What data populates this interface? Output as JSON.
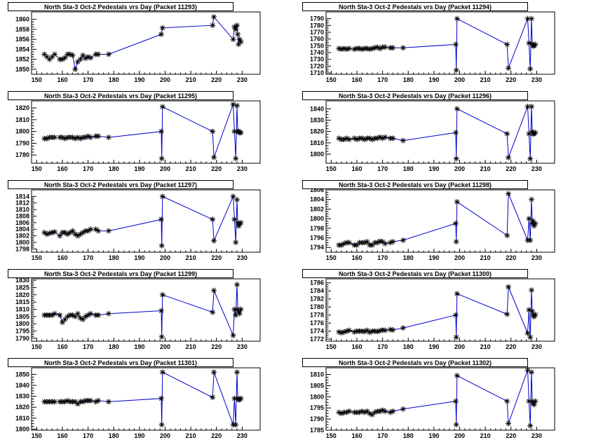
{
  "chart_data": [
    {
      "type": "line",
      "title": "North Sta-3 Oct-2 Pedestals vrs Day (Packet 11293)",
      "xlim": [
        148,
        237
      ],
      "xticks": [
        150,
        160,
        170,
        180,
        190,
        200,
        210,
        220,
        230
      ],
      "ylim": [
        1849,
        1861.5
      ],
      "yticks": [
        1850,
        1852,
        1854,
        1856,
        1858,
        1860
      ],
      "x": [
        153,
        154,
        155,
        156,
        157,
        159,
        160,
        161,
        162,
        163,
        164,
        165,
        166,
        167,
        168,
        169,
        170,
        171,
        173,
        174,
        178,
        198.5,
        199,
        218.5,
        219,
        226.5,
        227,
        227.5,
        228,
        228.3,
        228.6,
        229,
        229.5
      ],
      "y": [
        1853,
        1852.5,
        1852,
        1852.5,
        1853,
        1852,
        1852,
        1852.3,
        1853,
        1853,
        1852.8,
        1850,
        1851.5,
        1852,
        1852.8,
        1852.2,
        1852.5,
        1852.3,
        1853,
        1853,
        1853,
        1857,
        1858.3,
        1858.8,
        1860.5,
        1856,
        1858.5,
        1858,
        1858.8,
        1857,
        1855,
        1856,
        1855.5
      ],
      "color": "#0000cc"
    },
    {
      "type": "line",
      "title": "North Sta-3 Oct-2 Pedestals vrs Day (Packet 11294)",
      "xlim": [
        148,
        237
      ],
      "xticks": [
        150,
        160,
        170,
        180,
        190,
        200,
        210,
        220,
        230
      ],
      "ylim": [
        1708,
        1800
      ],
      "yticks": [
        1710,
        1720,
        1730,
        1740,
        1750,
        1760,
        1770,
        1780,
        1790
      ],
      "x": [
        153,
        154,
        155,
        156,
        157,
        159,
        160,
        161,
        162,
        163,
        164,
        165,
        166,
        167,
        168,
        169,
        170,
        171,
        173,
        174,
        178,
        198.5,
        198.7,
        199,
        218.5,
        219,
        226.5,
        227,
        227.5,
        228,
        228.3,
        228.6,
        229,
        229.5
      ],
      "y": [
        1746,
        1745,
        1746,
        1745,
        1746,
        1745,
        1746,
        1746,
        1745,
        1746,
        1746,
        1745,
        1746,
        1747,
        1748,
        1746,
        1748,
        1748,
        1747,
        1747,
        1747,
        1752,
        1714,
        1790,
        1752,
        1717,
        1790,
        1754,
        1716,
        1790,
        1753,
        1750,
        1750,
        1752
      ],
      "color": "#0000cc"
    },
    {
      "type": "line",
      "title": "North Sta-3 Oct-2 Pedestals vrs Day (Packet 11295)",
      "xlim": [
        148,
        237
      ],
      "xticks": [
        150,
        160,
        170,
        180,
        190,
        200,
        210,
        220,
        230
      ],
      "ylim": [
        1773,
        1826
      ],
      "yticks": [
        1780,
        1790,
        1800,
        1810,
        1820
      ],
      "x": [
        153,
        154,
        155,
        156,
        157,
        159,
        160,
        161,
        162,
        163,
        164,
        165,
        166,
        167,
        168,
        169,
        170,
        171,
        173,
        174,
        178,
        198.5,
        198.7,
        199,
        218.5,
        219,
        226.5,
        227,
        227.5,
        228,
        228.3,
        228.6,
        229,
        229.5
      ],
      "y": [
        1794,
        1794,
        1795,
        1795,
        1795,
        1795,
        1795,
        1794,
        1795,
        1795,
        1795,
        1794,
        1795,
        1794,
        1795,
        1795,
        1796,
        1795,
        1796,
        1796,
        1795,
        1800,
        1777,
        1821,
        1800,
        1778,
        1823,
        1800,
        1777,
        1822,
        1800,
        1800,
        1799,
        1799
      ],
      "color": "#0000cc"
    },
    {
      "type": "line",
      "title": "North Sta-3 Oct-2 Pedestals vrs Day (Packet 11296)",
      "xlim": [
        148,
        237
      ],
      "xticks": [
        150,
        160,
        170,
        180,
        190,
        200,
        210,
        220,
        230
      ],
      "ylim": [
        1792,
        1847
      ],
      "yticks": [
        1800,
        1810,
        1820,
        1830,
        1840
      ],
      "x": [
        153,
        154,
        155,
        156,
        157,
        159,
        160,
        161,
        162,
        163,
        164,
        165,
        166,
        167,
        168,
        169,
        170,
        171,
        173,
        174,
        178,
        198.5,
        198.7,
        199,
        218.5,
        219,
        226.5,
        227,
        227.5,
        228,
        228.3,
        228.6,
        229,
        229.5
      ],
      "y": [
        1814,
        1813,
        1813,
        1814,
        1813,
        1814,
        1813,
        1814,
        1814,
        1813,
        1814,
        1814,
        1813,
        1814,
        1814,
        1815,
        1814,
        1815,
        1814,
        1814,
        1812,
        1819,
        1796,
        1840,
        1818,
        1797,
        1842,
        1818,
        1796,
        1842,
        1820,
        1818,
        1818,
        1819
      ],
      "color": "#0000cc"
    },
    {
      "type": "line",
      "title": "North Sta-3 Oct-2 Pedestals vrs Day (Packet 11297)",
      "xlim": [
        148,
        237
      ],
      "xticks": [
        150,
        160,
        170,
        180,
        190,
        200,
        210,
        220,
        230
      ],
      "ylim": [
        1797,
        1816
      ],
      "yticks": [
        1798,
        1800,
        1802,
        1804,
        1806,
        1808,
        1810,
        1812,
        1814
      ],
      "x": [
        153,
        154,
        155,
        156,
        157,
        159,
        160,
        161,
        162,
        163,
        164,
        165,
        166,
        167,
        168,
        169,
        170,
        171,
        173,
        174,
        178,
        198.5,
        198.7,
        199,
        218.5,
        219,
        226.5,
        227,
        227.5,
        228,
        228.3,
        228.6,
        229,
        229.5
      ],
      "y": [
        1803,
        1802.5,
        1802.8,
        1803,
        1803.2,
        1802,
        1803,
        1803,
        1802.5,
        1803,
        1803.5,
        1802.5,
        1802,
        1802.5,
        1803,
        1803.5,
        1803.5,
        1804,
        1804,
        1803.5,
        1803.5,
        1807,
        1799,
        1814,
        1807,
        1800.5,
        1814,
        1807,
        1800,
        1813,
        1806,
        1805,
        1805.5,
        1806
      ],
      "color": "#0000cc"
    },
    {
      "type": "line",
      "title": "North Sta-3 Oct-2 Pedestals vrs Day (Packet 11298)",
      "xlim": [
        148,
        237
      ],
      "xticks": [
        150,
        160,
        170,
        180,
        190,
        200,
        210,
        220,
        230
      ],
      "ylim": [
        1793,
        1806
      ],
      "yticks": [
        1794,
        1796,
        1798,
        1800,
        1802,
        1804,
        1806
      ],
      "x": [
        153,
        154,
        155,
        156,
        157,
        159,
        160,
        161,
        162,
        163,
        164,
        165,
        166,
        167,
        168,
        169,
        170,
        171,
        173,
        174,
        178,
        198.5,
        198.7,
        199,
        218.5,
        219,
        226.5,
        227,
        227.5,
        228,
        228.3,
        228.6,
        229,
        229.5
      ],
      "y": [
        1794.5,
        1794.5,
        1794.8,
        1795,
        1795,
        1794.5,
        1794.5,
        1795,
        1795,
        1795,
        1795.2,
        1794.5,
        1794.5,
        1795,
        1795,
        1795.3,
        1795.2,
        1794.8,
        1795,
        1795.2,
        1795.5,
        1799,
        1795.2,
        1803.5,
        1796.5,
        1805.2,
        1795.5,
        1800,
        1795.5,
        1804,
        1799,
        1799.5,
        1798.5,
        1799
      ],
      "color": "#0000cc"
    },
    {
      "type": "line",
      "title": "North Sta-3 Oct-2 Pedestals vrs Day (Packet 11299)",
      "xlim": [
        148,
        237
      ],
      "xticks": [
        150,
        160,
        170,
        180,
        190,
        200,
        210,
        220,
        230
      ],
      "ylim": [
        1788,
        1831
      ],
      "yticks": [
        1790,
        1795,
        1800,
        1805,
        1810,
        1815,
        1820,
        1825,
        1830
      ],
      "x": [
        153,
        154,
        155,
        156,
        157,
        159,
        160,
        161,
        162,
        163,
        164,
        165,
        166,
        167,
        168,
        169,
        170,
        171,
        173,
        174,
        178,
        198.5,
        198.7,
        199,
        218.5,
        219,
        226.5,
        227,
        227.5,
        228,
        228.3,
        228.6,
        229,
        229.5
      ],
      "y": [
        1806,
        1806,
        1806,
        1806,
        1807,
        1806,
        1801,
        1803,
        1805,
        1806,
        1806,
        1805,
        1807,
        1804,
        1803,
        1805,
        1806,
        1807,
        1806,
        1806,
        1807,
        1809,
        1791,
        1820,
        1808,
        1823,
        1792,
        1810,
        1806,
        1827,
        1810,
        1808,
        1807,
        1810
      ],
      "color": "#0000cc"
    },
    {
      "type": "line",
      "title": "North Sta-3 Oct-2 Pedestals vrs Day (Packet 11300)",
      "xlim": [
        148,
        237
      ],
      "xticks": [
        150,
        160,
        170,
        180,
        190,
        200,
        210,
        220,
        230
      ],
      "ylim": [
        1771.5,
        1787
      ],
      "yticks": [
        1772,
        1774,
        1776,
        1778,
        1780,
        1782,
        1784,
        1786
      ],
      "x": [
        153,
        154,
        155,
        156,
        157,
        159,
        160,
        161,
        162,
        163,
        164,
        165,
        166,
        167,
        168,
        169,
        170,
        171,
        173,
        174,
        178,
        198.5,
        198.7,
        199,
        218.5,
        219,
        226.5,
        227,
        227.5,
        228,
        228.3,
        228.6,
        229,
        229.5
      ],
      "y": [
        1773.8,
        1773.6,
        1773.8,
        1774,
        1774.2,
        1773.8,
        1774,
        1774,
        1774,
        1773.9,
        1774.2,
        1773.7,
        1774,
        1774,
        1773.9,
        1774.1,
        1774.3,
        1774.2,
        1774.4,
        1774.3,
        1774.8,
        1778,
        1772.5,
        1783.3,
        1778.2,
        1785,
        1773.5,
        1779.3,
        1772.5,
        1784.2,
        1779,
        1778,
        1777.6,
        1778.1
      ],
      "color": "#0000cc"
    },
    {
      "type": "line",
      "title": "North Sta-3 Oct-2 Pedestals vrs Day (Packet 11301)",
      "xlim": [
        148,
        237
      ],
      "xticks": [
        150,
        160,
        170,
        180,
        190,
        200,
        210,
        220,
        230
      ],
      "ylim": [
        1799,
        1856
      ],
      "yticks": [
        1800,
        1810,
        1820,
        1830,
        1840,
        1850
      ],
      "x": [
        153,
        154,
        155,
        156,
        157,
        159,
        160,
        161,
        162,
        163,
        164,
        165,
        166,
        167,
        168,
        169,
        170,
        171,
        173,
        174,
        178,
        198.5,
        198.7,
        199,
        218.5,
        219,
        226.5,
        227,
        227.5,
        228,
        228.3,
        228.6,
        229,
        229.5
      ],
      "y": [
        1825,
        1825,
        1825,
        1825,
        1825,
        1825,
        1825,
        1825,
        1826,
        1825,
        1825,
        1825,
        1823,
        1825,
        1825,
        1826,
        1826,
        1826,
        1825,
        1826,
        1825,
        1828,
        1804,
        1852,
        1829,
        1852,
        1804,
        1828,
        1804,
        1852,
        1828,
        1827,
        1827,
        1828
      ],
      "color": "#0000cc"
    },
    {
      "type": "line",
      "title": "North Sta-3 Oct-2 Pedestals vrs Day (Packet 11302)",
      "xlim": [
        148,
        237
      ],
      "xticks": [
        150,
        160,
        170,
        180,
        190,
        200,
        210,
        220,
        230
      ],
      "ylim": [
        1785,
        1813
      ],
      "yticks": [
        1785,
        1790,
        1795,
        1800,
        1805,
        1810
      ],
      "x": [
        153,
        154,
        155,
        156,
        157,
        159,
        160,
        161,
        162,
        163,
        164,
        165,
        166,
        167,
        168,
        169,
        170,
        171,
        173,
        174,
        178,
        198.5,
        198.7,
        199,
        218.5,
        219,
        226.5,
        227,
        227.5,
        228,
        228.3,
        228.6,
        229,
        229.5
      ],
      "y": [
        1793,
        1792.5,
        1793,
        1793,
        1793.5,
        1793,
        1793,
        1793,
        1793.5,
        1793,
        1793.5,
        1792.5,
        1792,
        1793,
        1793.5,
        1793.5,
        1794,
        1793.5,
        1793,
        1793.5,
        1794.5,
        1798,
        1787.5,
        1809.5,
        1798,
        1788,
        1812,
        1798,
        1787,
        1811,
        1798,
        1797,
        1796.5,
        1798
      ],
      "color": "#0000cc"
    }
  ]
}
